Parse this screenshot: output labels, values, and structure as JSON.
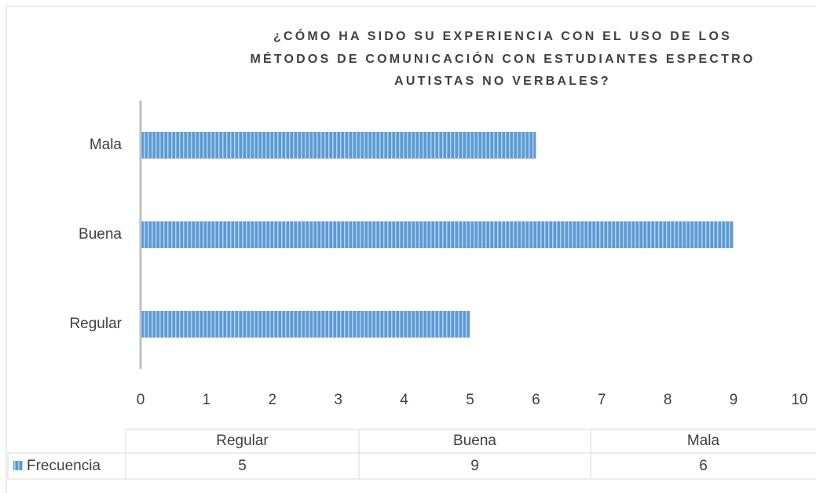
{
  "chart_data": {
    "type": "hbar",
    "title": [
      "¿CÓMO HA SIDO SU EXPERIENCIA CON EL USO DE LOS",
      "MÉTODOS DE COMUNICACIÓN CON ESTUDIANTES ESPECTRO",
      "AUTISTAS NO VERBALES?"
    ],
    "categories": [
      "Regular",
      "Buena",
      "Mala"
    ],
    "series": [
      {
        "name": "Frecuencia",
        "color": "#5b9bd5",
        "values": [
          5,
          9,
          6
        ]
      }
    ],
    "xlim": [
      0,
      10
    ],
    "xticks": [
      0,
      1,
      2,
      3,
      4,
      5,
      6,
      7,
      8,
      9,
      10
    ],
    "data_table": true
  }
}
